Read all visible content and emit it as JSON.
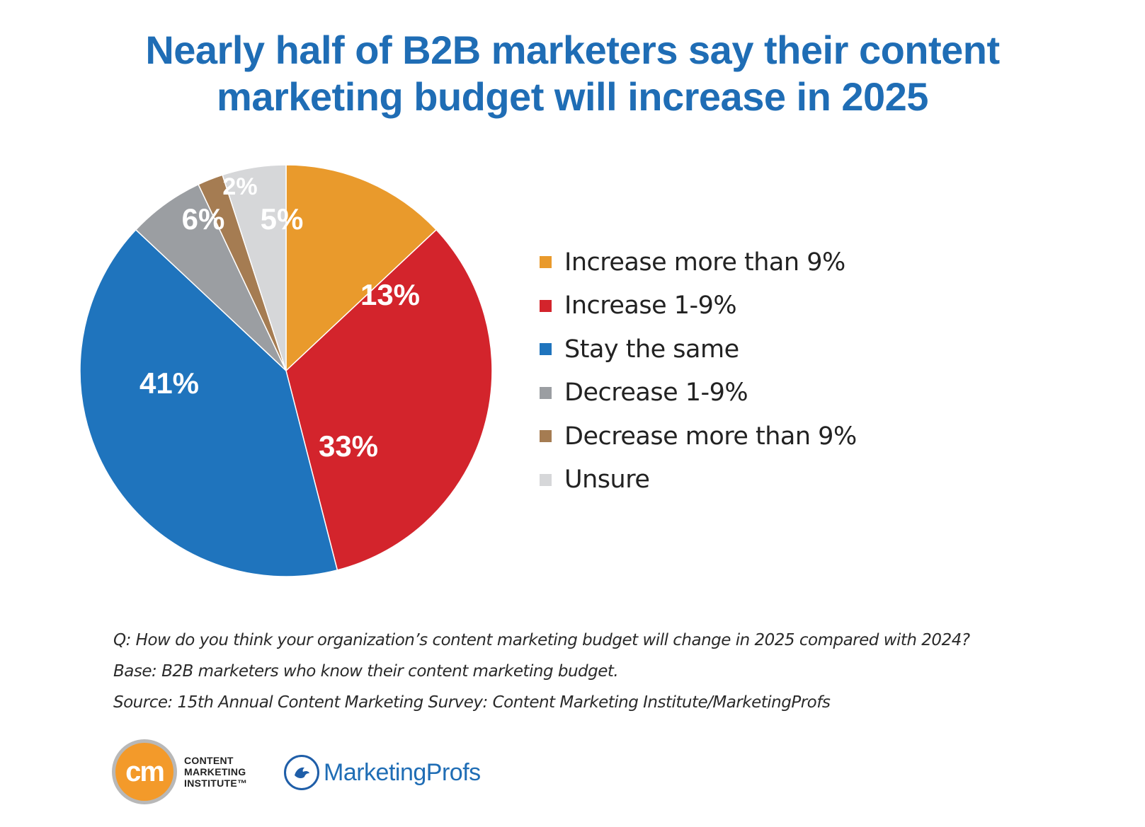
{
  "title": {
    "line1": "Nearly half of B2B marketers say their content",
    "line2": "marketing budget will increase in 2025"
  },
  "chart_data": {
    "type": "pie",
    "title": "Nearly half of B2B marketers say their content marketing budget will increase in 2025",
    "legend_position": "right",
    "slices": [
      {
        "label": "Increase more than 9%",
        "value": 13,
        "display": "13%",
        "color": "#e99a2c"
      },
      {
        "label": "Increase 1-9%",
        "value": 33,
        "display": "33%",
        "color": "#d3242c"
      },
      {
        "label": "Stay the same",
        "value": 41,
        "display": "41%",
        "color": "#1f74bd"
      },
      {
        "label": "Decrease 1-9%",
        "value": 6,
        "display": "6%",
        "color": "#9b9ea2"
      },
      {
        "label": "Decrease more than 9%",
        "value": 2,
        "display": "2%",
        "color": "#a57c52"
      },
      {
        "label": "Unsure",
        "value": 5,
        "display": "5%",
        "color": "#d6d7d9"
      }
    ]
  },
  "notes": {
    "question": "Q: How do you think your organization’s content marketing budget will change in 2025 compared with 2024?",
    "base": "Base: B2B marketers who know their content marketing budget.",
    "source": "Source: 15th Annual Content Marketing Survey: Content Marketing Institute/MarketingProfs"
  },
  "logos": {
    "cmi_mark": "cm",
    "cmi_line1": "CONTENT",
    "cmi_line2": "MARKETING",
    "cmi_line3": "INSTITUTE™",
    "marketingprofs": "MarketingProfs",
    "marketingprofs_icon": "bird-icon"
  }
}
